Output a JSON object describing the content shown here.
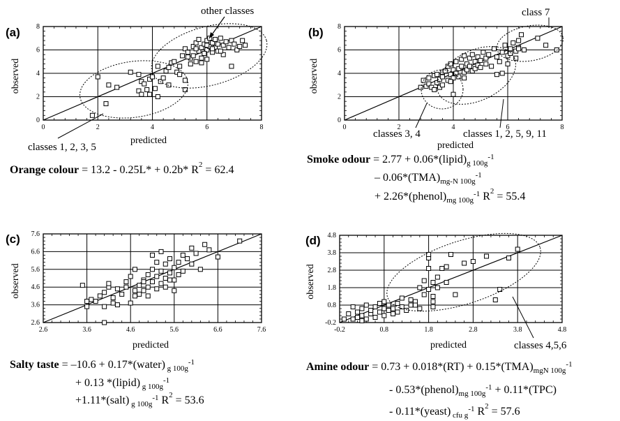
{
  "chart_data": [
    {
      "type": "scatter",
      "panel_label": "(a)",
      "xlabel": "predicted",
      "ylabel": "observed",
      "xlim": [
        0,
        8
      ],
      "ylim": [
        0,
        8
      ],
      "xticks": [
        "0",
        "2",
        "4",
        "6",
        "8"
      ],
      "yticks": [
        "0",
        "2",
        "4",
        "6",
        "8"
      ],
      "annotations": [
        "other classes",
        "classes 1, 2, 3, 5"
      ],
      "equation": {
        "name": "Orange colour",
        "lines": [
          "= 13.2 - 0.25L* + 0.2b*   R² = 62.4"
        ]
      },
      "points": [
        [
          1.8,
          0.4
        ],
        [
          2.0,
          3.7
        ],
        [
          2.3,
          1.4
        ],
        [
          2.4,
          3.0
        ],
        [
          2.7,
          2.8
        ],
        [
          3.2,
          4.1
        ],
        [
          3.5,
          3.9
        ],
        [
          3.6,
          3.3
        ],
        [
          3.5,
          2.5
        ],
        [
          3.6,
          2.2
        ],
        [
          3.7,
          3.1
        ],
        [
          3.8,
          2.6
        ],
        [
          3.9,
          3.5
        ],
        [
          4.0,
          3.7
        ],
        [
          4.1,
          2.7
        ],
        [
          4.2,
          2.0
        ],
        [
          3.9,
          2.2
        ],
        [
          4.3,
          3.3
        ],
        [
          4.4,
          3.6
        ],
        [
          4.5,
          4.2
        ],
        [
          4.6,
          4.5
        ],
        [
          4.6,
          3.0
        ],
        [
          4.7,
          4.9
        ],
        [
          4.2,
          4.6
        ],
        [
          4.9,
          4.1
        ],
        [
          5.0,
          3.9
        ],
        [
          5.2,
          3.4
        ],
        [
          5.2,
          2.6
        ],
        [
          4.8,
          5.0
        ],
        [
          5.1,
          5.5
        ],
        [
          5.2,
          6.1
        ],
        [
          5.3,
          5.8
        ],
        [
          5.4,
          5.3
        ],
        [
          5.4,
          4.8
        ],
        [
          5.5,
          6.3
        ],
        [
          5.5,
          5.5
        ],
        [
          5.6,
          6.6
        ],
        [
          5.6,
          5.0
        ],
        [
          5.7,
          5.9
        ],
        [
          5.7,
          6.9
        ],
        [
          5.8,
          6.2
        ],
        [
          5.8,
          5.3
        ],
        [
          5.9,
          6.5
        ],
        [
          6.0,
          6.8
        ],
        [
          6.0,
          6.0
        ],
        [
          6.0,
          5.2
        ],
        [
          6.1,
          6.3
        ],
        [
          6.1,
          7.0
        ],
        [
          6.2,
          6.6
        ],
        [
          6.2,
          5.8
        ],
        [
          6.3,
          6.2
        ],
        [
          6.3,
          6.9
        ],
        [
          6.4,
          6.5
        ],
        [
          6.4,
          5.9
        ],
        [
          6.5,
          7.0
        ],
        [
          6.6,
          6.4
        ],
        [
          6.6,
          5.6
        ],
        [
          6.7,
          6.7
        ],
        [
          6.8,
          6.2
        ],
        [
          6.9,
          6.8
        ],
        [
          7.0,
          6.5
        ],
        [
          7.1,
          6.0
        ],
        [
          7.2,
          6.3
        ],
        [
          7.3,
          6.8
        ],
        [
          7.4,
          6.4
        ],
        [
          6.9,
          4.6
        ],
        [
          5.0,
          4.6
        ],
        [
          5.3,
          5.4
        ],
        [
          5.8,
          4.9
        ],
        [
          6.5,
          5.9
        ],
        [
          5.6,
          6.1
        ],
        [
          6.0,
          6.4
        ],
        [
          6.2,
          6.1
        ],
        [
          5.9,
          5.7
        ]
      ]
    },
    {
      "type": "scatter",
      "panel_label": "(b)",
      "xlabel": "predicted",
      "ylabel": "observed",
      "xlim": [
        0,
        8
      ],
      "ylim": [
        0,
        8
      ],
      "xticks": [
        "0",
        "2",
        "4",
        "6",
        "8"
      ],
      "yticks": [
        "0",
        "2",
        "4",
        "6",
        "8"
      ],
      "annotations": [
        "class 7",
        "classes 3, 4",
        "classes 1, 2, 5, 9, 11"
      ],
      "equation": {
        "name": "Smoke odour",
        "lines": [
          "= 2.77 + 0.06*(lipid)g 100g-1",
          "– 0.06*(TMA)mg-N 100g-1",
          "+ 2.26*(phenol)mg 100g-1   R² = 55.4"
        ]
      },
      "points": [
        [
          2.8,
          2.8
        ],
        [
          2.9,
          3.4
        ],
        [
          3.0,
          2.9
        ],
        [
          3.1,
          3.6
        ],
        [
          3.1,
          3.1
        ],
        [
          3.2,
          2.8
        ],
        [
          3.3,
          3.8
        ],
        [
          3.3,
          2.6
        ],
        [
          3.4,
          3.2
        ],
        [
          3.4,
          3.9
        ],
        [
          3.5,
          3.5
        ],
        [
          3.5,
          2.8
        ],
        [
          3.6,
          4.1
        ],
        [
          3.6,
          3.0
        ],
        [
          3.6,
          3.7
        ],
        [
          3.7,
          4.2
        ],
        [
          3.8,
          3.4
        ],
        [
          3.8,
          4.6
        ],
        [
          3.9,
          3.9
        ],
        [
          3.9,
          4.8
        ],
        [
          4.0,
          4.3
        ],
        [
          4.0,
          3.6
        ],
        [
          4.1,
          5.0
        ],
        [
          4.1,
          4.0
        ],
        [
          4.2,
          4.4
        ],
        [
          4.2,
          3.7
        ],
        [
          4.3,
          5.2
        ],
        [
          4.3,
          4.6
        ],
        [
          4.4,
          4.1
        ],
        [
          4.4,
          5.5
        ],
        [
          4.5,
          4.8
        ],
        [
          4.5,
          4.3
        ],
        [
          4.6,
          5.3
        ],
        [
          4.6,
          4.6
        ],
        [
          4.7,
          5.6
        ],
        [
          4.7,
          4.2
        ],
        [
          4.8,
          5.0
        ],
        [
          4.8,
          4.4
        ],
        [
          4.9,
          5.4
        ],
        [
          4.9,
          4.7
        ],
        [
          5.0,
          5.1
        ],
        [
          5.0,
          4.5
        ],
        [
          5.1,
          5.8
        ],
        [
          5.2,
          5.3
        ],
        [
          5.2,
          4.8
        ],
        [
          5.3,
          5.6
        ],
        [
          5.4,
          4.6
        ],
        [
          5.5,
          6.1
        ],
        [
          5.6,
          5.4
        ],
        [
          5.6,
          3.9
        ],
        [
          5.7,
          5.0
        ],
        [
          5.8,
          5.8
        ],
        [
          5.9,
          6.4
        ],
        [
          6.0,
          5.5
        ],
        [
          6.0,
          4.8
        ],
        [
          6.1,
          6.1
        ],
        [
          6.2,
          6.6
        ],
        [
          6.3,
          5.3
        ],
        [
          6.3,
          5.9
        ],
        [
          6.4,
          6.2
        ],
        [
          6.4,
          6.8
        ],
        [
          6.5,
          7.3
        ],
        [
          6.6,
          6.0
        ],
        [
          6.1,
          5.7
        ],
        [
          5.8,
          4.0
        ],
        [
          7.1,
          7.0
        ],
        [
          7.4,
          6.4
        ],
        [
          7.8,
          6.0
        ],
        [
          6.4,
          6.1
        ],
        [
          4.4,
          3.6
        ],
        [
          3.9,
          3.3
        ],
        [
          4.0,
          2.2
        ]
      ]
    },
    {
      "type": "scatter",
      "panel_label": "(c)",
      "xlabel": "predicted",
      "ylabel": "observed",
      "xlim": [
        2.6,
        7.6
      ],
      "ylim": [
        2.6,
        7.6
      ],
      "xticks": [
        "2.6",
        "3.6",
        "4.6",
        "5.6",
        "6.6",
        "7.6"
      ],
      "yticks": [
        "2.6",
        "3.6",
        "4.6",
        "5.6",
        "6.6",
        "7.6"
      ],
      "annotations": [],
      "equation": {
        "name": "Salty taste",
        "lines": [
          "= –10.6 + 0.17*(water) g 100g-1",
          "+ 0.13 *(lipid) g 100g-1",
          "+1.11*(salt) g 100g-1   R² = 53.6"
        ]
      },
      "points": [
        [
          3.5,
          4.7
        ],
        [
          3.6,
          3.8
        ],
        [
          3.6,
          3.5
        ],
        [
          3.7,
          3.9
        ],
        [
          3.8,
          3.8
        ],
        [
          3.9,
          4.1
        ],
        [
          4.0,
          4.3
        ],
        [
          4.0,
          3.5
        ],
        [
          4.0,
          2.6
        ],
        [
          4.1,
          4.6
        ],
        [
          4.1,
          4.8
        ],
        [
          4.2,
          3.7
        ],
        [
          4.2,
          4.0
        ],
        [
          4.3,
          4.5
        ],
        [
          4.3,
          3.6
        ],
        [
          4.4,
          4.2
        ],
        [
          4.5,
          4.6
        ],
        [
          4.5,
          4.9
        ],
        [
          4.6,
          3.7
        ],
        [
          4.6,
          5.2
        ],
        [
          4.7,
          4.4
        ],
        [
          4.7,
          4.1
        ],
        [
          4.7,
          5.6
        ],
        [
          4.8,
          4.7
        ],
        [
          4.8,
          4.2
        ],
        [
          4.9,
          5.0
        ],
        [
          4.9,
          4.4
        ],
        [
          5.0,
          5.3
        ],
        [
          5.0,
          4.6
        ],
        [
          5.0,
          4.1
        ],
        [
          5.1,
          5.6
        ],
        [
          5.1,
          4.9
        ],
        [
          5.1,
          6.4
        ],
        [
          5.2,
          5.2
        ],
        [
          5.2,
          4.5
        ],
        [
          5.2,
          6.0
        ],
        [
          5.3,
          5.5
        ],
        [
          5.3,
          4.8
        ],
        [
          5.4,
          5.9
        ],
        [
          5.4,
          5.1
        ],
        [
          5.4,
          4.6
        ],
        [
          5.5,
          5.4
        ],
        [
          5.5,
          6.2
        ],
        [
          5.6,
          5.7
        ],
        [
          5.6,
          5.0
        ],
        [
          5.6,
          4.4
        ],
        [
          5.7,
          5.3
        ],
        [
          5.7,
          6.0
        ],
        [
          5.8,
          5.5
        ],
        [
          5.8,
          6.4
        ],
        [
          5.9,
          6.2
        ],
        [
          6.0,
          6.8
        ],
        [
          6.0,
          5.9
        ],
        [
          6.1,
          6.5
        ],
        [
          6.2,
          5.6
        ],
        [
          6.3,
          7.0
        ],
        [
          6.4,
          6.7
        ],
        [
          6.6,
          6.3
        ],
        [
          7.1,
          7.2
        ],
        [
          5.3,
          6.6
        ],
        [
          4.9,
          4.9
        ],
        [
          5.5,
          5.0
        ]
      ]
    },
    {
      "type": "scatter",
      "panel_label": "(d)",
      "xlabel": "predicted",
      "ylabel": "observed",
      "xlim": [
        -0.2,
        4.8
      ],
      "ylim": [
        -0.2,
        4.8
      ],
      "xticks": [
        "-0.2",
        "0.8",
        "1.8",
        "2.8",
        "3.8",
        "4.8"
      ],
      "yticks": [
        "-0.2",
        "0.8",
        "1.8",
        "2.8",
        "3.8",
        "4.8"
      ],
      "annotations": [
        "classes 4,5,6"
      ],
      "equation": {
        "name": "Amine odour",
        "lines": [
          "= 0.73 + 0.018*(RT) + 0.15*(TMA)mgN 100g-1",
          "- 0.53*(phenol)mg 100g-1 + 0.11*(TPC)",
          "- 0.11*(yeast) cfu g-1       R² = 57.6"
        ]
      },
      "points": [
        [
          -0.1,
          0.0
        ],
        [
          0.0,
          0.3
        ],
        [
          0.1,
          0.7
        ],
        [
          0.1,
          0.0
        ],
        [
          0.2,
          0.4
        ],
        [
          0.2,
          0.1
        ],
        [
          0.3,
          0.6
        ],
        [
          0.3,
          0.2
        ],
        [
          0.4,
          0.0
        ],
        [
          0.4,
          0.8
        ],
        [
          0.5,
          0.3
        ],
        [
          0.5,
          0.5
        ],
        [
          0.6,
          0.1
        ],
        [
          0.6,
          0.7
        ],
        [
          0.7,
          0.4
        ],
        [
          0.7,
          0.9
        ],
        [
          0.8,
          0.2
        ],
        [
          0.8,
          0.6
        ],
        [
          0.8,
          1.0
        ],
        [
          0.9,
          0.5
        ],
        [
          0.9,
          0.8
        ],
        [
          1.0,
          0.3
        ],
        [
          1.0,
          0.6
        ],
        [
          1.1,
          0.9
        ],
        [
          1.1,
          0.4
        ],
        [
          1.2,
          0.7
        ],
        [
          1.2,
          1.2
        ],
        [
          1.3,
          0.5
        ],
        [
          1.4,
          0.8
        ],
        [
          1.5,
          1.0
        ],
        [
          1.6,
          1.8
        ],
        [
          1.6,
          0.6
        ],
        [
          1.7,
          1.4
        ],
        [
          1.7,
          2.2
        ],
        [
          1.8,
          1.7
        ],
        [
          1.8,
          2.9
        ],
        [
          1.8,
          3.5
        ],
        [
          1.8,
          3.7
        ],
        [
          1.9,
          1.3
        ],
        [
          1.9,
          2.1
        ],
        [
          1.9,
          0.7
        ],
        [
          2.0,
          1.8
        ],
        [
          2.0,
          2.4
        ],
        [
          2.1,
          2.9
        ],
        [
          2.2,
          2.1
        ],
        [
          2.2,
          3.0
        ],
        [
          2.3,
          3.7
        ],
        [
          2.4,
          1.4
        ],
        [
          2.6,
          3.2
        ],
        [
          2.8,
          3.3
        ],
        [
          3.1,
          3.6
        ],
        [
          3.4,
          1.7
        ],
        [
          3.3,
          1.1
        ],
        [
          3.6,
          3.5
        ],
        [
          3.8,
          4.0
        ],
        [
          1.4,
          1.1
        ],
        [
          1.5,
          0.8
        ],
        [
          0.3,
          -0.1
        ],
        [
          1.9,
          1.0
        ]
      ]
    }
  ]
}
